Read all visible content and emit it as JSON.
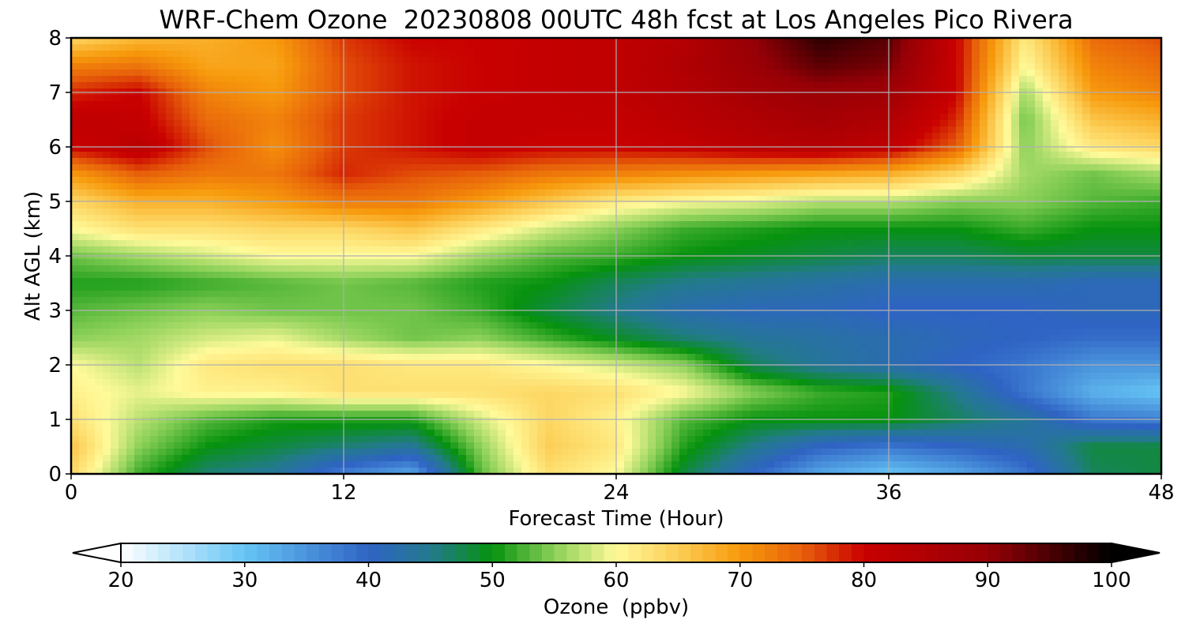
{
  "chart_data": {
    "type": "heatmap",
    "title": "WRF-Chem Ozone  20230808 00UTC 48h fcst at Los Angeles Pico Rivera",
    "xlabel": "Forecast Time (Hour)",
    "ylabel": "Alt AGL (km)",
    "xlim": [
      0,
      48
    ],
    "ylim": [
      0,
      8
    ],
    "xticks": [
      0,
      12,
      24,
      36,
      48
    ],
    "yticks": [
      0,
      1,
      2,
      3,
      4,
      5,
      6,
      7,
      8
    ],
    "grid": true,
    "x": [
      0,
      3,
      6,
      9,
      12,
      15,
      18,
      21,
      24,
      27,
      30,
      33,
      36,
      39,
      42,
      45,
      48
    ],
    "y": [
      0,
      0.5,
      1,
      1.5,
      2,
      2.5,
      3,
      3.5,
      4,
      4.5,
      5,
      5.5,
      6,
      6.5,
      7,
      7.5,
      8
    ],
    "z": [
      [
        64,
        52,
        46,
        44,
        37,
        33,
        53,
        63,
        60,
        48,
        40,
        33,
        30,
        33,
        38,
        47,
        48
      ],
      [
        66,
        55,
        50,
        48,
        46,
        44,
        55,
        65,
        62,
        51,
        45,
        40,
        38,
        40,
        42,
        48,
        48
      ],
      [
        63,
        57,
        53,
        51,
        51,
        51,
        58,
        64,
        61,
        53,
        50,
        50,
        50,
        47,
        44,
        38,
        37
      ],
      [
        61,
        59,
        61,
        61,
        63,
        63,
        63,
        64,
        63,
        60,
        55,
        52,
        51,
        45,
        38,
        32,
        30
      ],
      [
        60,
        57,
        62,
        63,
        63,
        62,
        62,
        60,
        58,
        55,
        47,
        44,
        42,
        40,
        38,
        35,
        35
      ],
      [
        55,
        56,
        58,
        59,
        56,
        54,
        55,
        52,
        49,
        46,
        44,
        43,
        42,
        41,
        40,
        39,
        39
      ],
      [
        53,
        54,
        55,
        54,
        54,
        54,
        52,
        48,
        45,
        42,
        41,
        41,
        40,
        40,
        40,
        41,
        41
      ],
      [
        51,
        51,
        52,
        53,
        54,
        53,
        51,
        50,
        47,
        45,
        44,
        43,
        42,
        42,
        42,
        41,
        41
      ],
      [
        54,
        56,
        58,
        60,
        60,
        60,
        56,
        53,
        52,
        50,
        49,
        48,
        47,
        47,
        48,
        48,
        48
      ],
      [
        60,
        63,
        63,
        64,
        64,
        66,
        62,
        58,
        55,
        52,
        51,
        50,
        50,
        50,
        52,
        50,
        50
      ],
      [
        64,
        68,
        68,
        70,
        73,
        73,
        70,
        66,
        62,
        60,
        59,
        57,
        57,
        55,
        55,
        53,
        52
      ],
      [
        70,
        75,
        73,
        73,
        78,
        76,
        75,
        73,
        72,
        71,
        70,
        69,
        68,
        64,
        56,
        54,
        56
      ],
      [
        80,
        83,
        76,
        71,
        77,
        79,
        81,
        80,
        80,
        81,
        83,
        84,
        82,
        75,
        55,
        62,
        64
      ],
      [
        82,
        81,
        74,
        72,
        77,
        79,
        81,
        81,
        81,
        83,
        85,
        87,
        85,
        78,
        54,
        66,
        68
      ],
      [
        78,
        80,
        72,
        70,
        76,
        79,
        80,
        81,
        82,
        84,
        87,
        89,
        88,
        80,
        56,
        70,
        72
      ],
      [
        72,
        73,
        69,
        69,
        76,
        79,
        80,
        81,
        82,
        85,
        89,
        94,
        92,
        80,
        60,
        72,
        74
      ],
      [
        64,
        67,
        68,
        70,
        77,
        80,
        80,
        81,
        82,
        84,
        90,
        97,
        94,
        80,
        62,
        74,
        76
      ]
    ],
    "colorbar": {
      "label": "Ozone  (ppbv)",
      "min": 20,
      "max": 100,
      "ticks": [
        20,
        30,
        40,
        50,
        60,
        70,
        80,
        90,
        100
      ],
      "extend": "both",
      "stops": [
        {
          "v": 20,
          "c": "#ffffff"
        },
        {
          "v": 30,
          "c": "#66c5f5"
        },
        {
          "v": 40,
          "c": "#2f63c4"
        },
        {
          "v": 45,
          "c": "#237a8e"
        },
        {
          "v": 50,
          "c": "#06920e"
        },
        {
          "v": 55,
          "c": "#8bd058"
        },
        {
          "v": 60,
          "c": "#fffa9a"
        },
        {
          "v": 65,
          "c": "#fcce56"
        },
        {
          "v": 70,
          "c": "#f79a0c"
        },
        {
          "v": 75,
          "c": "#e7600a"
        },
        {
          "v": 80,
          "c": "#c90000"
        },
        {
          "v": 90,
          "c": "#950006"
        },
        {
          "v": 100,
          "c": "#000000"
        }
      ]
    }
  }
}
